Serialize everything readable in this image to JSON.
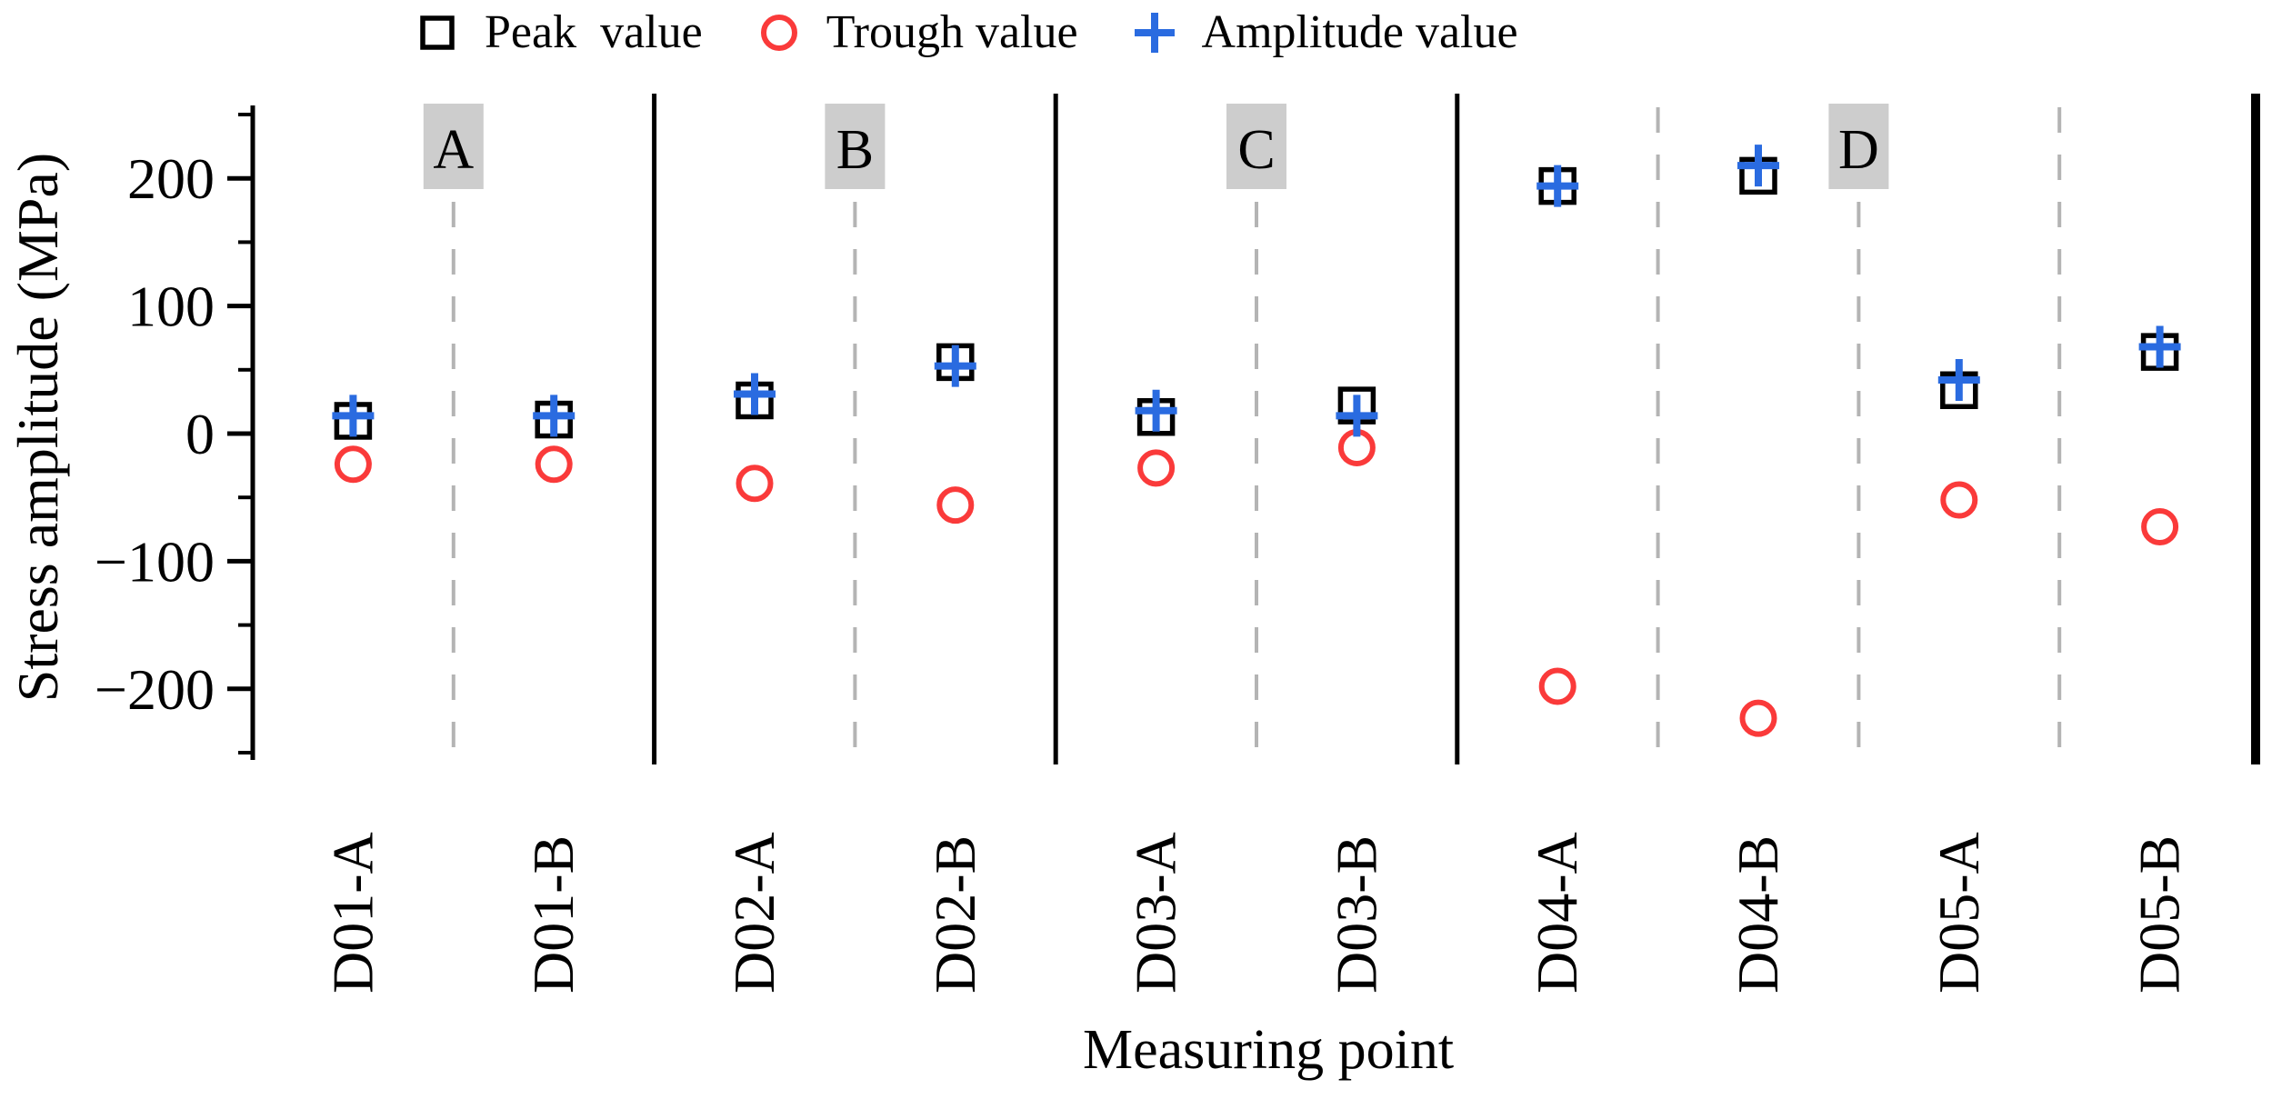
{
  "legend": {
    "items": [
      {
        "label": "Peak  value",
        "marker": "open-square"
      },
      {
        "label": "Trough value",
        "marker": "open-circle"
      },
      {
        "label": "Amplitude value",
        "marker": "plus"
      }
    ]
  },
  "chart_data": {
    "type": "scatter",
    "title": "",
    "xlabel": "Measuring point",
    "ylabel": "Stress amplitude (MPa)",
    "ylim": [
      -250,
      250
    ],
    "yticks_major": [
      200,
      100,
      0,
      -100,
      -200
    ],
    "yticks_minor": [
      250,
      150,
      50,
      -50,
      -150,
      -250
    ],
    "grid": false,
    "legend_position": "top",
    "categories": [
      "D01-A",
      "D01-B",
      "D02-A",
      "D02-B",
      "D03-A",
      "D03-B",
      "D04-A",
      "D04-B",
      "D05-A",
      "D05-B"
    ],
    "sections": [
      {
        "label": "A",
        "point_indices": [
          0,
          1
        ]
      },
      {
        "label": "B",
        "point_indices": [
          2,
          3
        ]
      },
      {
        "label": "C",
        "point_indices": [
          4,
          5
        ]
      },
      {
        "label": "D",
        "point_indices": [
          6,
          7,
          8,
          9
        ]
      }
    ],
    "series": [
      {
        "name": "Peak value",
        "marker": "open-square",
        "color": "#000000",
        "values": [
          10,
          11,
          26,
          56,
          13,
          22,
          194,
          202,
          34,
          64
        ]
      },
      {
        "name": "Trough value",
        "marker": "open-circle",
        "color": "#fa3a3a",
        "values": [
          -24,
          -24,
          -39,
          -56,
          -27,
          -11,
          -198,
          -223,
          -52,
          -73
        ]
      },
      {
        "name": "Amplitude value",
        "marker": "plus",
        "color": "#2a6be0",
        "values": [
          14,
          14,
          31,
          53,
          18,
          14,
          194,
          210,
          42,
          68
        ]
      }
    ],
    "colors": {
      "section_label_bg": "#cdcdcd",
      "dashed_line": "#b4b4b4",
      "axis": "#000000"
    }
  }
}
